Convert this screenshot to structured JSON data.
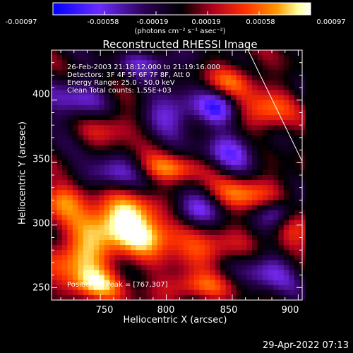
{
  "colorbar": {
    "ticks": [
      "-0.00097",
      "-0.00058",
      "-0.00019",
      "0.00019",
      "0.00058",
      "0.00097"
    ],
    "units": "(photons cm⁻² s⁻¹ asec⁻²)"
  },
  "annotations": {
    "time": "26-Feb-2003 21:18:12.000 to 21:19:16.000",
    "detectors": "Detectors: 3F 4F 5F 6F 7F 8F, Att 0",
    "energy": "Energy Range: 25.0 - 50.0 keV",
    "clean": "Clean    Total counts: 1.55E+03",
    "peak": "Position of Peak = [767,307]"
  },
  "timestamp": "29-Apr-2022 07:13",
  "chart_data": {
    "type": "heatmap",
    "title": "Reconstructed RHESSI Image",
    "xlabel": "Heliocentric X (arcsec)",
    "ylabel": "Heliocentric Y (arcsec)",
    "xlim": [
      713,
      903
    ],
    "ylim": [
      240,
      440
    ],
    "xticks": [
      "750",
      "800",
      "850",
      "900"
    ],
    "yticks": [
      "250",
      "300",
      "350",
      "400"
    ],
    "xtick_values": [
      750,
      800,
      850,
      900
    ],
    "ytick_values": [
      250,
      300,
      350,
      400
    ],
    "clim": [
      -0.00097,
      0.00097
    ],
    "colormap": [
      "#0000ff",
      "#7b2cff",
      "#2a0050",
      "#000000",
      "#b00020",
      "#ff3300",
      "#ff9900",
      "#ffff99",
      "#ffffff"
    ],
    "peak": [
      767,
      307
    ],
    "limb": [
      [
        862,
        440
      ],
      [
        903,
        351
      ]
    ],
    "blobs": [
      {
        "x": 765,
        "y": 305,
        "sx": 22,
        "sy": 14,
        "a": 0.00097
      },
      {
        "x": 735,
        "y": 275,
        "sx": 18,
        "sy": 12,
        "a": 0.00075
      },
      {
        "x": 790,
        "y": 290,
        "sx": 18,
        "sy": 10,
        "a": 0.0006
      },
      {
        "x": 722,
        "y": 320,
        "sx": 14,
        "sy": 10,
        "a": 0.0006
      },
      {
        "x": 745,
        "y": 252,
        "sx": 16,
        "sy": 10,
        "a": 0.0007
      },
      {
        "x": 800,
        "y": 345,
        "sx": 20,
        "sy": 8,
        "a": 0.0006
      },
      {
        "x": 860,
        "y": 325,
        "sx": 18,
        "sy": 10,
        "a": 0.0006
      },
      {
        "x": 875,
        "y": 390,
        "sx": 14,
        "sy": 12,
        "a": 0.0006
      },
      {
        "x": 830,
        "y": 280,
        "sx": 20,
        "sy": 10,
        "a": 0.0005
      },
      {
        "x": 850,
        "y": 415,
        "sx": 14,
        "sy": 10,
        "a": 0.0005
      },
      {
        "x": 760,
        "y": 380,
        "sx": 16,
        "sy": 10,
        "a": 0.0004
      },
      {
        "x": 893,
        "y": 290,
        "sx": 12,
        "sy": 15,
        "a": 0.0005
      },
      {
        "x": 820,
        "y": 250,
        "sx": 22,
        "sy": 8,
        "a": 0.0005
      },
      {
        "x": 805,
        "y": 390,
        "sx": 18,
        "sy": 12,
        "a": -0.0006
      },
      {
        "x": 850,
        "y": 360,
        "sx": 16,
        "sy": 12,
        "a": -0.0006
      },
      {
        "x": 760,
        "y": 340,
        "sx": 18,
        "sy": 10,
        "a": -0.0006
      },
      {
        "x": 820,
        "y": 310,
        "sx": 14,
        "sy": 10,
        "a": -0.0006
      },
      {
        "x": 880,
        "y": 265,
        "sx": 16,
        "sy": 14,
        "a": -0.0006
      },
      {
        "x": 730,
        "y": 400,
        "sx": 18,
        "sy": 14,
        "a": -0.0005
      },
      {
        "x": 790,
        "y": 430,
        "sx": 18,
        "sy": 8,
        "a": -0.0005
      },
      {
        "x": 885,
        "y": 310,
        "sx": 10,
        "sy": 8,
        "a": -0.0007
      },
      {
        "x": 840,
        "y": 395,
        "sx": 10,
        "sy": 10,
        "a": -0.0006
      }
    ]
  }
}
